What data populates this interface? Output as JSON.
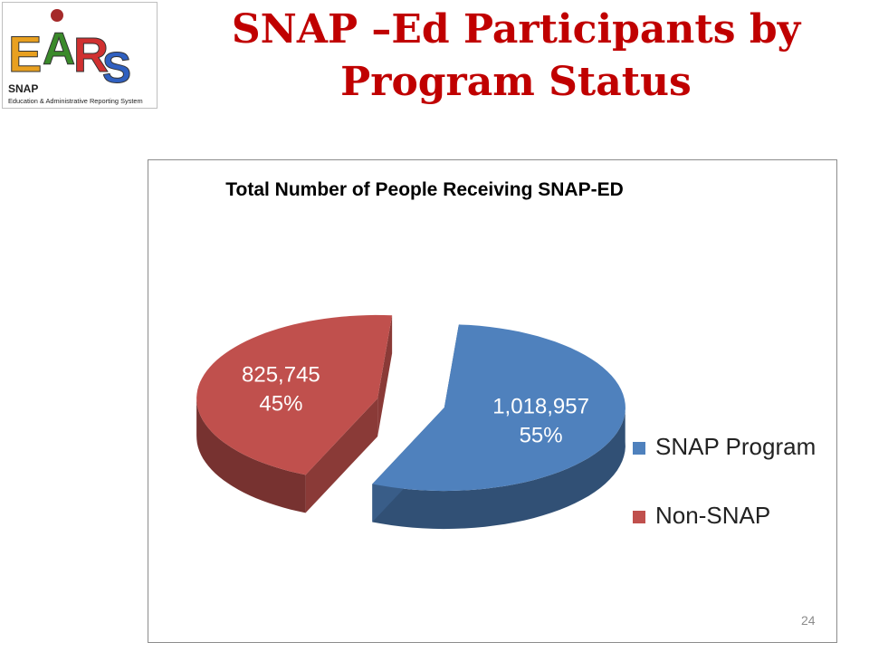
{
  "slide": {
    "title_line1": "SNAP –Ed Participants by",
    "title_line2": "Program Status",
    "page_number": "24"
  },
  "logo": {
    "letters": [
      "E",
      "A",
      "R",
      "S"
    ],
    "letter_colors": [
      "#e8a020",
      "#3a8a2a",
      "#d03030",
      "#3060c0"
    ],
    "name": "SNAP",
    "subtitle": "Education & Administrative Reporting System"
  },
  "colors": {
    "title": "#c00000",
    "snap_program": "#4f81bd",
    "non_snap": "#c0504d"
  },
  "chart_data": {
    "type": "pie",
    "title": "Total Number of People Receiving SNAP-ED",
    "style": "3d-exploded",
    "legend_position": "right",
    "slices": [
      {
        "label": "SNAP Program",
        "value": 1018957,
        "value_label": "1,018,957",
        "percent_label": "55%",
        "color": "#4f81bd"
      },
      {
        "label": "Non-SNAP",
        "value": 825745,
        "value_label": "825,745",
        "percent_label": "45%",
        "color": "#c0504d"
      }
    ]
  }
}
